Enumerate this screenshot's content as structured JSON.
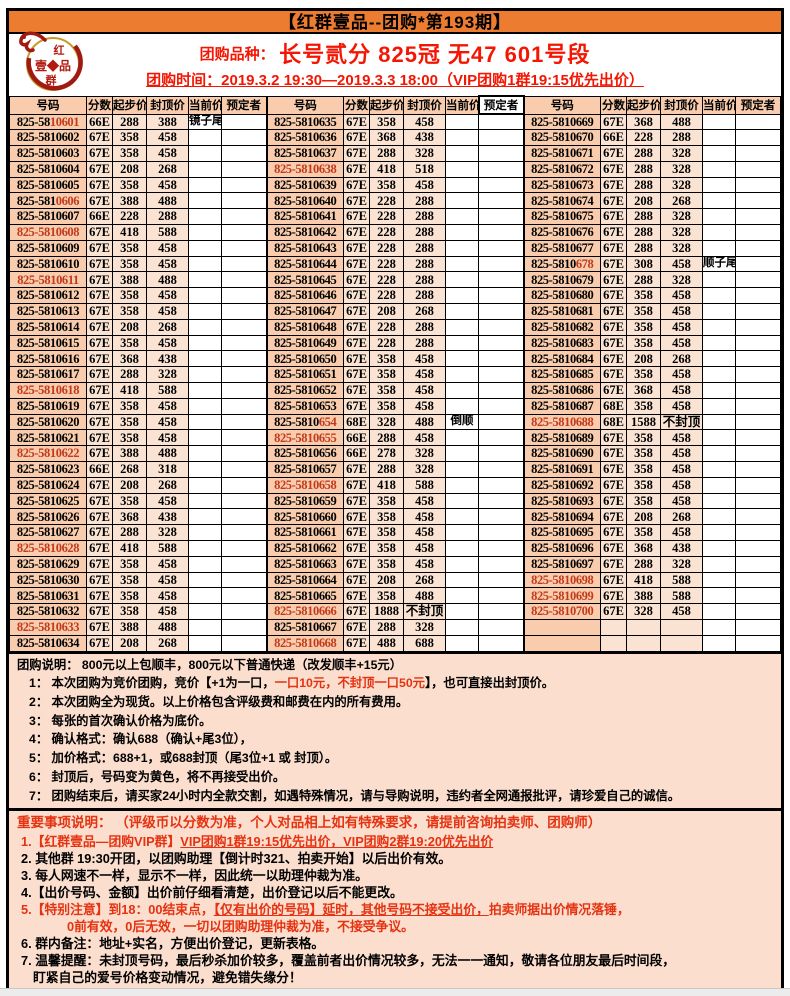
{
  "window": {
    "title": "【红群壹品--团购*第193期】"
  },
  "colors": {
    "titlebar_bg": "#EC7C30",
    "peach_dark": "#F8CCAC",
    "peach_light": "#FAE3D2",
    "box_bg": "#FBDECD",
    "red_table": "#C23A1C",
    "red_bright": "#F41602",
    "notes_red": "#E53211"
  },
  "header": {
    "logo_top": "红",
    "logo_mid": "壹◆品",
    "logo_bottom": "群",
    "variety_label": "团购品种：",
    "variety_value": "长号贰分 825冠 无47 601号段",
    "time_label": "团购时间：",
    "time_value": "2019.3.2 19:30—2019.3.3 18:00（VIP团购1群19:15优先出价）"
  },
  "table": {
    "headers": [
      "号码",
      "分数",
      "起步价",
      "封顶价",
      "当前价",
      "预定者"
    ],
    "groups": [
      [
        [
          "825-5810601",
          "66E",
          "288",
          "388",
          "镜子尾",
          6,
          "u"
        ],
        [
          "825-5810602",
          "67E",
          "358",
          "458",
          "",
          -1,
          ""
        ],
        [
          "825-5810603",
          "67E",
          "358",
          "458",
          "",
          -1,
          ""
        ],
        [
          "825-5810604",
          "67E",
          "208",
          "268",
          "",
          -1,
          ""
        ],
        [
          "825-5810605",
          "67E",
          "358",
          "458",
          "",
          -1,
          ""
        ],
        [
          "825-5810606",
          "67E",
          "388",
          "488",
          "",
          7,
          "ac"
        ],
        [
          "825-5810607",
          "66E",
          "228",
          "288",
          "",
          -1,
          ""
        ],
        [
          "825-5810608",
          "67E",
          "418",
          "588",
          "",
          0,
          "sac"
        ],
        [
          "825-5810609",
          "67E",
          "358",
          "458",
          "",
          -1,
          ""
        ],
        [
          "825-5810610",
          "67E",
          "358",
          "458",
          "",
          -1,
          ""
        ],
        [
          "825-5810611",
          "67E",
          "388",
          "488",
          "",
          0,
          "sac"
        ],
        [
          "825-5810612",
          "67E",
          "358",
          "458",
          "",
          -1,
          ""
        ],
        [
          "825-5810613",
          "67E",
          "358",
          "458",
          "",
          -1,
          ""
        ],
        [
          "825-5810614",
          "67E",
          "208",
          "268",
          "",
          -1,
          ""
        ],
        [
          "825-5810615",
          "67E",
          "358",
          "458",
          "",
          -1,
          ""
        ],
        [
          "825-5810616",
          "67E",
          "368",
          "438",
          "",
          -1,
          ""
        ],
        [
          "825-5810617",
          "67E",
          "288",
          "328",
          "",
          -1,
          ""
        ],
        [
          "825-5810618",
          "67E",
          "418",
          "588",
          "",
          0,
          "sac"
        ],
        [
          "825-5810619",
          "67E",
          "358",
          "458",
          "",
          -1,
          ""
        ],
        [
          "825-5810620",
          "67E",
          "358",
          "458",
          "",
          -1,
          ""
        ],
        [
          "825-5810621",
          "67E",
          "358",
          "458",
          "",
          -1,
          ""
        ],
        [
          "825-5810622",
          "67E",
          "388",
          "488",
          "",
          0,
          "sac"
        ],
        [
          "825-5810623",
          "66E",
          "268",
          "318",
          "",
          -1,
          ""
        ],
        [
          "825-5810624",
          "67E",
          "208",
          "268",
          "",
          -1,
          ""
        ],
        [
          "825-5810625",
          "67E",
          "358",
          "458",
          "",
          -1,
          ""
        ],
        [
          "825-5810626",
          "67E",
          "368",
          "438",
          "",
          -1,
          ""
        ],
        [
          "825-5810627",
          "67E",
          "288",
          "328",
          "",
          -1,
          ""
        ],
        [
          "825-5810628",
          "67E",
          "418",
          "588",
          "",
          0,
          "sac"
        ],
        [
          "825-5810629",
          "67E",
          "358",
          "458",
          "",
          -1,
          ""
        ],
        [
          "825-5810630",
          "67E",
          "358",
          "458",
          "",
          -1,
          ""
        ],
        [
          "825-5810631",
          "67E",
          "358",
          "458",
          "",
          -1,
          ""
        ],
        [
          "825-5810632",
          "67E",
          "358",
          "458",
          "",
          -1,
          ""
        ],
        [
          "825-5810633",
          "67E",
          "388",
          "488",
          "",
          0,
          "sac"
        ],
        [
          "825-5810634",
          "67E",
          "208",
          "268",
          "",
          -1,
          ""
        ]
      ],
      [
        [
          "825-5810635",
          "67E",
          "358",
          "458",
          "",
          -1,
          ""
        ],
        [
          "825-5810636",
          "67E",
          "368",
          "438",
          "",
          -1,
          ""
        ],
        [
          "825-5810637",
          "67E",
          "288",
          "328",
          "",
          -1,
          ""
        ],
        [
          "825-5810638",
          "67E",
          "418",
          "518",
          "",
          0,
          "sac"
        ],
        [
          "825-5810639",
          "67E",
          "358",
          "458",
          "",
          -1,
          ""
        ],
        [
          "825-5810640",
          "67E",
          "228",
          "288",
          "",
          -1,
          ""
        ],
        [
          "825-5810641",
          "67E",
          "228",
          "288",
          "",
          -1,
          ""
        ],
        [
          "825-5810642",
          "67E",
          "228",
          "288",
          "",
          -1,
          ""
        ],
        [
          "825-5810643",
          "67E",
          "228",
          "288",
          "",
          -1,
          ""
        ],
        [
          "825-5810644",
          "67E",
          "228",
          "288",
          "",
          -1,
          ""
        ],
        [
          "825-5810645",
          "67E",
          "228",
          "288",
          "",
          -1,
          ""
        ],
        [
          "825-5810646",
          "67E",
          "228",
          "288",
          "",
          -1,
          ""
        ],
        [
          "825-5810647",
          "67E",
          "208",
          "268",
          "",
          -1,
          ""
        ],
        [
          "825-5810648",
          "67E",
          "228",
          "288",
          "",
          -1,
          ""
        ],
        [
          "825-5810649",
          "67E",
          "228",
          "288",
          "",
          -1,
          ""
        ],
        [
          "825-5810650",
          "67E",
          "358",
          "458",
          "",
          -1,
          ""
        ],
        [
          "825-5810651",
          "67E",
          "358",
          "458",
          "",
          -1,
          ""
        ],
        [
          "825-5810652",
          "67E",
          "358",
          "458",
          "",
          -1,
          ""
        ],
        [
          "825-5810653",
          "67E",
          "358",
          "458",
          "",
          -1,
          ""
        ],
        [
          "825-5810654",
          "68E",
          "328",
          "488",
          "倒顺",
          8,
          "su"
        ],
        [
          "825-5810655",
          "66E",
          "288",
          "458",
          "",
          0,
          "sac"
        ],
        [
          "825-5810656",
          "66E",
          "278",
          "328",
          "",
          -1,
          ""
        ],
        [
          "825-5810657",
          "67E",
          "288",
          "328",
          "",
          -1,
          ""
        ],
        [
          "825-5810658",
          "67E",
          "418",
          "588",
          "",
          0,
          "sac"
        ],
        [
          "825-5810659",
          "67E",
          "358",
          "458",
          "",
          -1,
          ""
        ],
        [
          "825-5810660",
          "67E",
          "358",
          "458",
          "",
          -1,
          ""
        ],
        [
          "825-5810661",
          "67E",
          "358",
          "458",
          "",
          -1,
          ""
        ],
        [
          "825-5810662",
          "67E",
          "358",
          "458",
          "",
          -1,
          ""
        ],
        [
          "825-5810663",
          "67E",
          "358",
          "458",
          "",
          -1,
          ""
        ],
        [
          "825-5810664",
          "67E",
          "208",
          "268",
          "",
          -1,
          ""
        ],
        [
          "825-5810665",
          "67E",
          "358",
          "488",
          "",
          -1,
          ""
        ],
        [
          "825-5810666",
          "67E",
          "1888",
          "不封顶",
          "",
          0,
          "sac"
        ],
        [
          "825-5810667",
          "67E",
          "288",
          "328",
          "",
          -1,
          ""
        ],
        [
          "825-5810668",
          "67E",
          "488",
          "688",
          "",
          0,
          "sac"
        ]
      ],
      [
        [
          "825-5810669",
          "67E",
          "368",
          "488",
          "",
          -1,
          ""
        ],
        [
          "825-5810670",
          "66E",
          "228",
          "288",
          "",
          -1,
          ""
        ],
        [
          "825-5810671",
          "67E",
          "288",
          "328",
          "",
          -1,
          ""
        ],
        [
          "825-5810672",
          "67E",
          "288",
          "328",
          "",
          -1,
          ""
        ],
        [
          "825-5810673",
          "67E",
          "288",
          "328",
          "",
          -1,
          ""
        ],
        [
          "825-5810674",
          "67E",
          "208",
          "268",
          "",
          -1,
          ""
        ],
        [
          "825-5810675",
          "67E",
          "288",
          "328",
          "",
          -1,
          ""
        ],
        [
          "825-5810676",
          "67E",
          "288",
          "328",
          "",
          -1,
          ""
        ],
        [
          "825-5810677",
          "67E",
          "288",
          "328",
          "",
          -1,
          ""
        ],
        [
          "825-5810678",
          "67E",
          "308",
          "458",
          "顺子尾",
          8,
          "u"
        ],
        [
          "825-5810679",
          "67E",
          "288",
          "328",
          "",
          -1,
          ""
        ],
        [
          "825-5810680",
          "67E",
          "358",
          "458",
          "",
          -1,
          ""
        ],
        [
          "825-5810681",
          "67E",
          "358",
          "458",
          "",
          -1,
          ""
        ],
        [
          "825-5810682",
          "67E",
          "358",
          "458",
          "",
          -1,
          ""
        ],
        [
          "825-5810683",
          "67E",
          "358",
          "458",
          "",
          -1,
          ""
        ],
        [
          "825-5810684",
          "67E",
          "208",
          "268",
          "",
          -1,
          ""
        ],
        [
          "825-5810685",
          "67E",
          "358",
          "458",
          "",
          -1,
          ""
        ],
        [
          "825-5810686",
          "67E",
          "368",
          "458",
          "",
          -1,
          ""
        ],
        [
          "825-5810687",
          "68E",
          "358",
          "458",
          "",
          -1,
          "s"
        ],
        [
          "825-5810688",
          "68E",
          "1588",
          "不封顶",
          "",
          0,
          "sac"
        ],
        [
          "825-5810689",
          "67E",
          "358",
          "458",
          "",
          -1,
          ""
        ],
        [
          "825-5810690",
          "67E",
          "358",
          "458",
          "",
          -1,
          ""
        ],
        [
          "825-5810691",
          "67E",
          "358",
          "458",
          "",
          -1,
          ""
        ],
        [
          "825-5810692",
          "67E",
          "358",
          "458",
          "",
          -1,
          ""
        ],
        [
          "825-5810693",
          "67E",
          "358",
          "458",
          "",
          -1,
          ""
        ],
        [
          "825-5810694",
          "67E",
          "208",
          "268",
          "",
          -1,
          ""
        ],
        [
          "825-5810695",
          "67E",
          "358",
          "458",
          "",
          -1,
          ""
        ],
        [
          "825-5810696",
          "67E",
          "368",
          "438",
          "",
          -1,
          ""
        ],
        [
          "825-5810697",
          "67E",
          "288",
          "328",
          "",
          -1,
          ""
        ],
        [
          "825-5810698",
          "67E",
          "418",
          "588",
          "",
          0,
          "sac"
        ],
        [
          "825-5810699",
          "67E",
          "388",
          "588",
          "",
          0,
          "sac"
        ],
        [
          "825-5810700",
          "67E",
          "328",
          "458",
          "",
          0,
          "sac"
        ],
        [
          "",
          "",
          "",
          "",
          "",
          -1,
          ""
        ],
        [
          "",
          "",
          "",
          "",
          "",
          -1,
          ""
        ]
      ]
    ]
  },
  "notes1": {
    "lines": [
      {
        "ind": 4,
        "seg": [
          {
            "t": "团购说明：  800元以上包顺丰，800元以下普通快递（改发顺丰+15元）"
          }
        ]
      },
      {
        "ind": 16,
        "seg": [
          {
            "t": "1：  本次团购为竞价团购，竞价【+1为一口，"
          },
          {
            "t": "一口10元，不封顶一口50元",
            "red": true
          },
          {
            "t": "】，也可直接出封顶价。"
          }
        ]
      },
      {
        "ind": 16,
        "seg": [
          {
            "t": "2：  本次团购全为现货。以上价格包含评级费和邮费在内的所有费用。"
          }
        ]
      },
      {
        "ind": 16,
        "seg": [
          {
            "t": "3：  每张的首次确认价格为底价。"
          }
        ]
      },
      {
        "ind": 16,
        "seg": [
          {
            "t": "4：  确认格式：确认688（确认+尾3位），"
          }
        ]
      },
      {
        "ind": 16,
        "seg": [
          {
            "t": "5：  加价格式：688+1，或688封顶（尾3位+1 或 封顶）。"
          }
        ]
      },
      {
        "ind": 16,
        "seg": [
          {
            "t": "6：  封顶后，号码变为黄色，将不再接受出价。"
          }
        ]
      },
      {
        "ind": 16,
        "seg": [
          {
            "t": "7：  团购结束后，请买家24小时内全款交割，如遇特殊情况，请与导购说明，违约者全网通报批评，请珍爱自己的诚信。"
          }
        ]
      }
    ]
  },
  "notes2": {
    "lines": [
      {
        "ind": 2,
        "first": true,
        "seg": [
          {
            "t": "重要事项说明：  （评级币以分数为准，个人对品相上如有特殊要求，请提前咨询拍卖师、团购师）",
            "red": true
          }
        ]
      },
      {
        "ind": 6,
        "seg": [
          {
            "t": "1.【红群壹品—团购VIP群】",
            "red": true
          },
          {
            "t": "VIP团购1群19:15优先出价，VIP团购2群19:20优先出价",
            "red": true,
            "u": true
          }
        ]
      },
      {
        "ind": 6,
        "seg": [
          {
            "t": "2. 其他群 19:30开团，以团购助理【倒计时321、拍卖开始】以后出价有效。"
          }
        ]
      },
      {
        "ind": 6,
        "seg": [
          {
            "t": "3. 每人网速不一样，显示不一样，因此统一以助理仲裁为准。"
          }
        ]
      },
      {
        "ind": 6,
        "seg": [
          {
            "t": "4.【出价号码、金额】出价前仔细看清楚，出价登记以后不能更改。"
          }
        ]
      },
      {
        "ind": 6,
        "seg": [
          {
            "t": "5.【特别注意】到18：00结束点，",
            "red": true
          },
          {
            "t": "【仅有出价的号码】延时，其他号码不接受出价，",
            "red": true,
            "u": true
          },
          {
            "t": "拍卖师据出价情况落锤，",
            "red": true
          }
        ]
      },
      {
        "ind": 52,
        "seg": [
          {
            "t": "0前有效，0后无效，一切以团购助理仲裁为准，不接受争议。",
            "red": true
          }
        ]
      },
      {
        "ind": 6,
        "seg": [
          {
            "t": "6. 群内备注：地址+实名，方便出价登记，更新表格。"
          }
        ]
      },
      {
        "ind": 6,
        "seg": [
          {
            "t": "7. 温馨提醒：未封顶号码，最后秒杀加价较多，覆盖前者出价情况较多，无法一一通知，敬请各位朋友最后时间段，"
          }
        ]
      },
      {
        "ind": 18,
        "seg": [
          {
            "t": "盯紧自己的爱号价格变动情况，避免错失缘分！"
          }
        ]
      }
    ]
  }
}
